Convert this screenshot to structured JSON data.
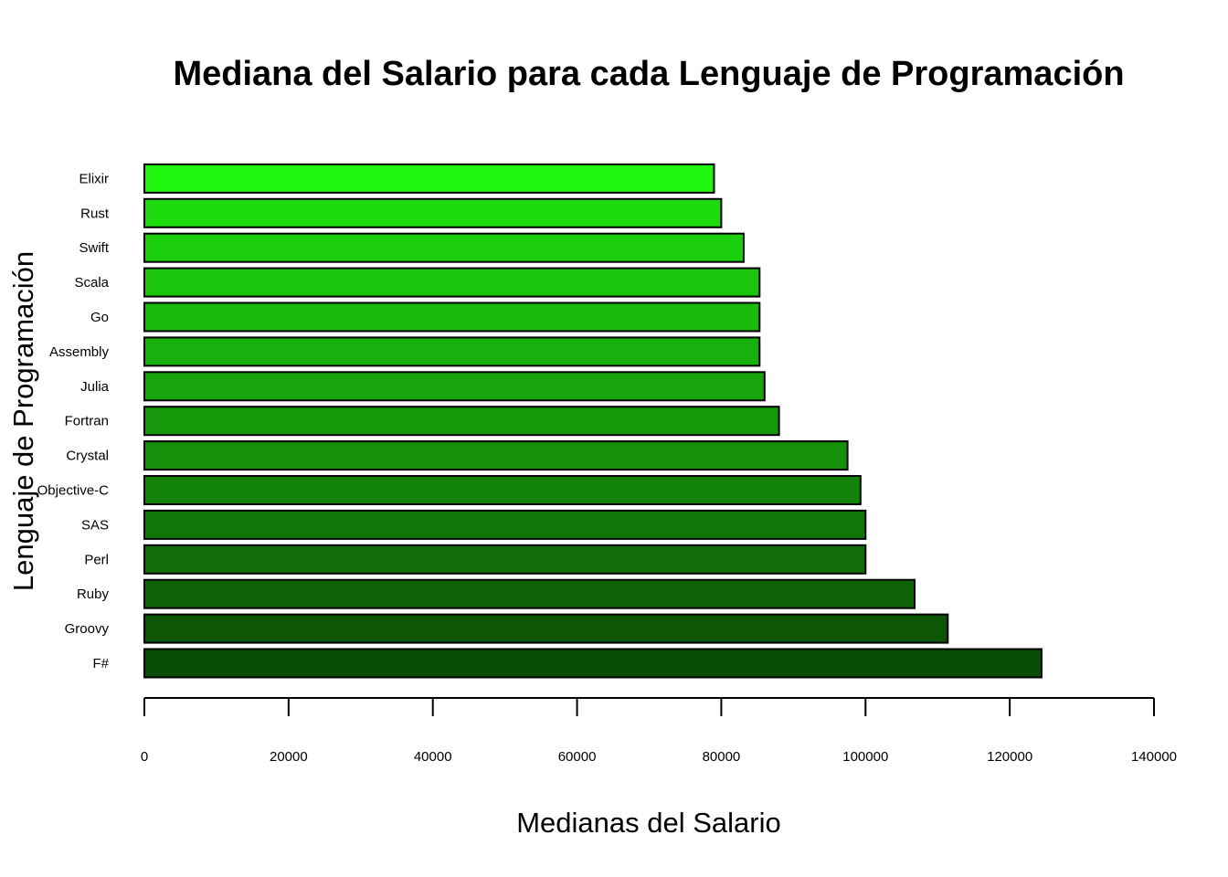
{
  "chart_data": {
    "type": "bar",
    "orientation": "horizontal",
    "title": "Mediana del Salario para cada Lenguaje de Programación",
    "xlabel": "Medianas del Salario",
    "ylabel": "Lenguaje de Programación",
    "xlim": [
      0,
      140000
    ],
    "x_ticks": [
      "0",
      "20000",
      "40000",
      "60000",
      "80000",
      "100000",
      "120000",
      "140000"
    ],
    "grid": false,
    "legend": "none",
    "categories": [
      "F#",
      "Groovy",
      "Ruby",
      "Perl",
      "SAS",
      "Objective-C",
      "Crystal",
      "Fortran",
      "Julia",
      "Assembly",
      "Go",
      "Scala",
      "Swift",
      "Rust",
      "Elixir"
    ],
    "values": [
      124400,
      111400,
      106800,
      100000,
      100000,
      99300,
      97500,
      88000,
      86000,
      85300,
      85300,
      85300,
      83100,
      80000,
      79000
    ],
    "colors": [
      "#0a4d06",
      "#0c5606",
      "#0e6307",
      "#106d08",
      "#117708",
      "#138409",
      "#14900a",
      "#16990b",
      "#17a50b",
      "#18b00c",
      "#1abb0d",
      "#1bc40d",
      "#1ccf0e",
      "#1edb0f",
      "#20f710"
    ]
  }
}
